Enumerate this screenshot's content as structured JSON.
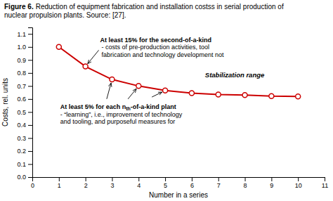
{
  "chart_data": {
    "type": "line",
    "title": "Figure 6.",
    "subtitle": " Reduction of equipment fabrication and installation costss in serial production of\nnuclear propulsion plants. Source: [27].",
    "xlabel": "Number in a series",
    "ylabel": "Costs, rel. units",
    "x": [
      1,
      2,
      3,
      4,
      5,
      6,
      7,
      8,
      9,
      10
    ],
    "series": [
      {
        "values": [
          1.0,
          0.85,
          0.75,
          0.7,
          0.665,
          0.645,
          0.635,
          0.63,
          0.622,
          0.62
        ],
        "color": "#cc0000",
        "marker": "circle"
      }
    ],
    "xlim": [
      0,
      11
    ],
    "ylim": [
      0,
      1.15
    ],
    "xticks": [
      0,
      1,
      2,
      3,
      4,
      5,
      6,
      7,
      8,
      9,
      10,
      11
    ],
    "yticks": [
      {
        "value": 0,
        "label": "0.0"
      },
      0.1,
      0.2,
      0.3,
      0.4,
      0.5,
      0.6,
      0.7,
      0.8,
      0.9,
      {
        "value": 1.0,
        "label": "1.0"
      },
      1.1
    ],
    "grid": false,
    "annotations": [
      "At least 15% for the second-of-a-kind",
      " - costs of pre-production activities, tool\n fabrication and technology development not",
      "At least 5% for each n",
      "th",
      "-of-a-kind plant",
      " -  “learning”, i.e., improvement of technology\nand tooling, and purposeful measures for",
      "Stabilization range"
    ]
  }
}
